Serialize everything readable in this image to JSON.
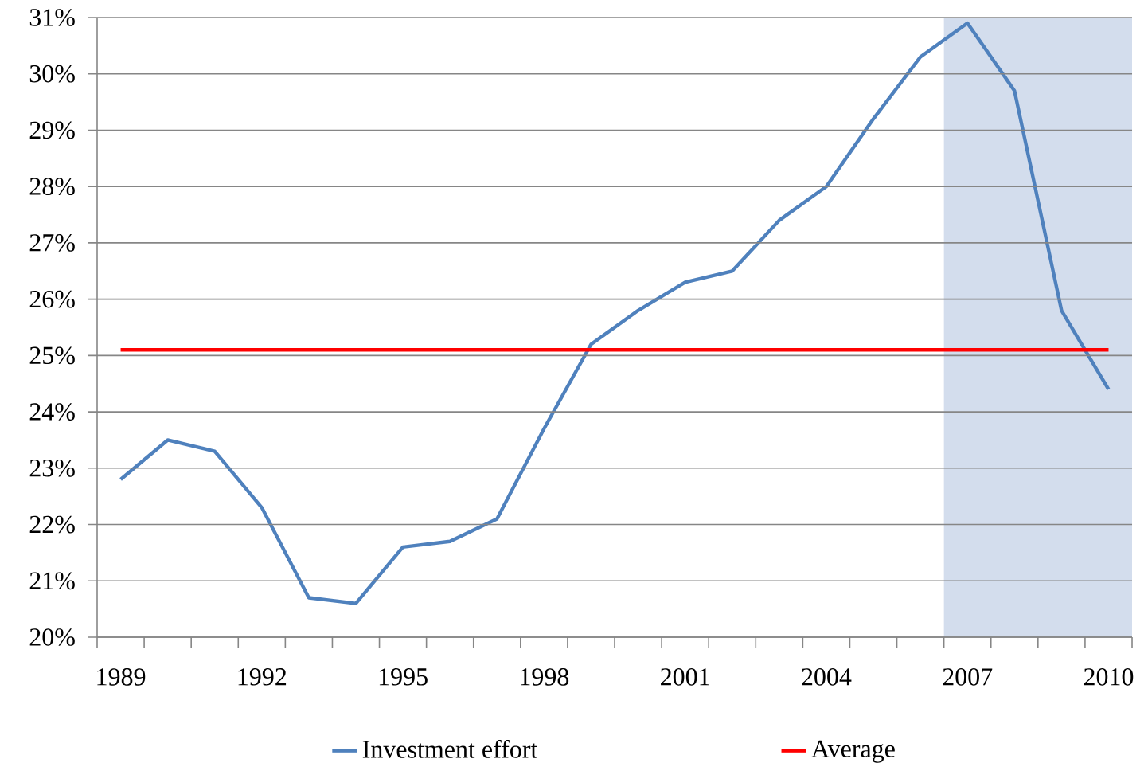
{
  "chart_data": {
    "type": "line",
    "categories": [
      "1989",
      null,
      null,
      "1992",
      null,
      null,
      "1995",
      null,
      null,
      "1998",
      null,
      null,
      "2001",
      null,
      null,
      "2004",
      null,
      null,
      "2007",
      null,
      null,
      "2010"
    ],
    "series": [
      {
        "name": "Investment effort",
        "color": "#4f81bd",
        "values": [
          22.8,
          23.5,
          23.3,
          22.3,
          20.7,
          20.6,
          21.6,
          21.7,
          22.1,
          23.7,
          25.2,
          25.8,
          26.3,
          26.5,
          27.4,
          28.0,
          29.2,
          30.3,
          30.9,
          29.7,
          25.8,
          24.4
        ]
      },
      {
        "name": "Average",
        "color": "#ff0000",
        "values": [
          25.1,
          25.1,
          25.1,
          25.1,
          25.1,
          25.1,
          25.1,
          25.1,
          25.1,
          25.1,
          25.1,
          25.1,
          25.1,
          25.1,
          25.1,
          25.1,
          25.1,
          25.1,
          25.1,
          25.1,
          25.1,
          25.1
        ]
      }
    ],
    "ylim": [
      20,
      31
    ],
    "yticks": [
      {
        "value": 20,
        "label": "20%"
      },
      {
        "value": 21,
        "label": "21%"
      },
      {
        "value": 22,
        "label": "22%"
      },
      {
        "value": 23,
        "label": "23%"
      },
      {
        "value": 24,
        "label": "24%"
      },
      {
        "value": 25,
        "label": "25%"
      },
      {
        "value": 26,
        "label": "26%"
      },
      {
        "value": 27,
        "label": "27%"
      },
      {
        "value": 28,
        "label": "28%"
      },
      {
        "value": 29,
        "label": "29%"
      },
      {
        "value": 30,
        "label": "30%"
      },
      {
        "value": 31,
        "label": "31%"
      }
    ],
    "grid": "y",
    "legend": "bottom",
    "bands": [
      {
        "axis": "x",
        "from": "2007",
        "to": "2010",
        "color": "#d3dded"
      }
    ]
  }
}
